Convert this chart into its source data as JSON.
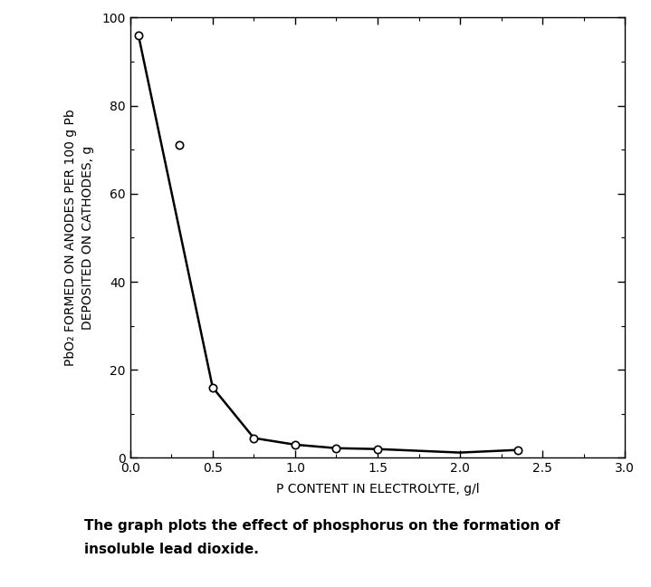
{
  "line_x": [
    0.05,
    0.5,
    0.75,
    1.0,
    1.25,
    1.5,
    2.0,
    2.35
  ],
  "line_y": [
    96,
    16,
    4.5,
    3.0,
    2.2,
    2.0,
    1.2,
    1.8
  ],
  "scatter_x": [
    0.05,
    0.3,
    0.5,
    0.75,
    1.0,
    1.25,
    1.5,
    2.35
  ],
  "scatter_y": [
    96,
    71,
    16,
    4.5,
    3.0,
    2.2,
    2.0,
    1.8
  ],
  "xlabel": "P CONTENT IN ELECTROLYTE, g/l",
  "ylabel_line1": "PbO₂ FORMED ON ANODES PER 100 g Pb",
  "ylabel_line2": "DEPOSITED ON CATHODES, g",
  "xlim": [
    0,
    3.0
  ],
  "ylim": [
    0,
    100
  ],
  "xticks": [
    0,
    0.5,
    1.0,
    1.5,
    2.0,
    2.5,
    3.0
  ],
  "yticks": [
    0,
    20,
    40,
    60,
    80,
    100
  ],
  "caption_line1": "The graph plots the effect of phosphorus on the formation of",
  "caption_line2": "insoluble lead dioxide.",
  "marker": "o",
  "marker_size": 6,
  "line_color": "black",
  "marker_facecolor": "white",
  "marker_edgecolor": "black",
  "linewidth": 1.8,
  "background_color": "white",
  "minor_xticks": [
    0.25,
    0.75,
    1.25,
    1.75,
    2.25,
    2.75
  ],
  "minor_yticks": [
    10,
    30,
    50,
    70,
    90
  ],
  "tick_labelsize": 10,
  "xlabel_fontsize": 10,
  "ylabel_fontsize": 10,
  "caption_fontsize": 11
}
